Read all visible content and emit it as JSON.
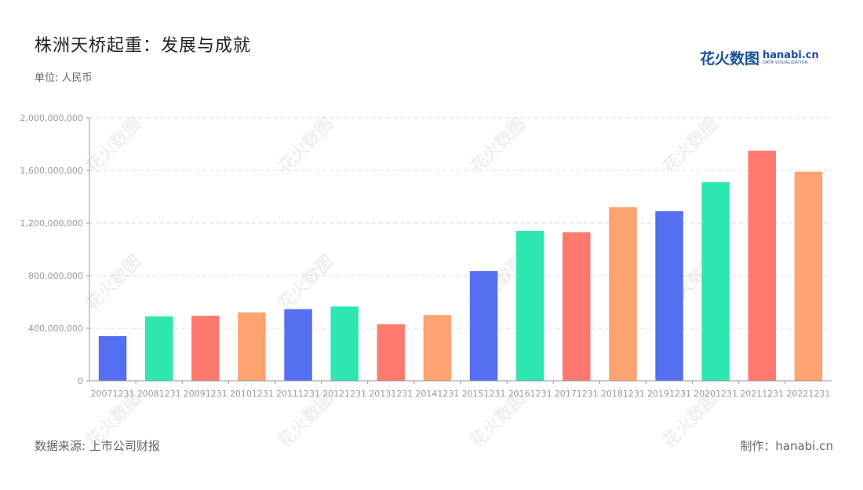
{
  "header": {
    "title": "株洲天桥起重：发展与成就",
    "unit": "单位: 人民币"
  },
  "brand": {
    "cn": "花火数图",
    "en": "hanabi.cn",
    "sub": "DATA VISUALIZATION"
  },
  "footer": {
    "source": "数据来源: 上市公司财报",
    "credit": "制作：hanabi.cn"
  },
  "watermark_text": "花火数图",
  "colors": {
    "palette": [
      "#5470f0",
      "#2ee6b0",
      "#ff7a6e",
      "#ffa370"
    ],
    "grid": "#dddddd",
    "axis": "#999999",
    "tick_text": "#999999",
    "brand": "#1a4fa0"
  },
  "chart_data": {
    "type": "bar",
    "title": "株洲天桥起重：发展与成就",
    "xlabel": "",
    "ylabel": "",
    "categories": [
      "20071231",
      "20081231",
      "20091231",
      "20101231",
      "20111231",
      "20121231",
      "20131231",
      "20141231",
      "20151231",
      "20161231",
      "20171231",
      "20181231",
      "20191231",
      "20201231",
      "20211231",
      "20221231"
    ],
    "values": [
      340000000,
      490000000,
      495000000,
      520000000,
      545000000,
      565000000,
      430000000,
      500000000,
      835000000,
      1140000000,
      1130000000,
      1320000000,
      1290000000,
      1510000000,
      1750000000,
      1590000000
    ],
    "ylim": [
      0,
      2000000000
    ],
    "yticks": [
      0,
      400000000,
      800000000,
      1200000000,
      1600000000,
      2000000000
    ],
    "ytick_labels": [
      "0",
      "400,000,000",
      "800,000,000",
      "1,200,000,000",
      "1,600,000,000",
      "2,000,000,000"
    ],
    "grid": true,
    "legend": "none"
  }
}
